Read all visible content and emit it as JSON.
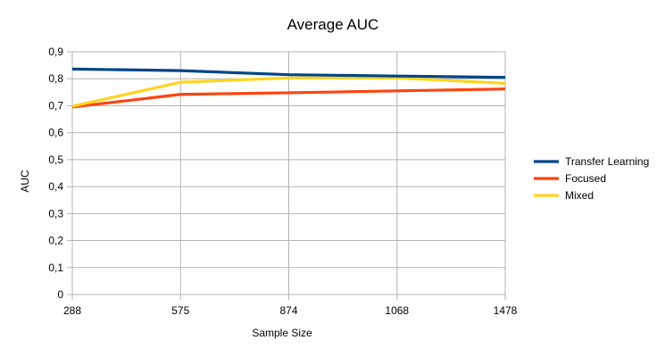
{
  "chart_data": {
    "type": "line",
    "title": "Average AUC",
    "xlabel": "Sample Size",
    "ylabel": "AUC",
    "categories": [
      "288",
      "575",
      "874",
      "1068",
      "1478"
    ],
    "ylim": [
      0,
      0.9
    ],
    "yticks": [
      "0",
      "0,1",
      "0,2",
      "0,3",
      "0,4",
      "0,5",
      "0,6",
      "0,7",
      "0,8",
      "0,9"
    ],
    "grid": true,
    "legend_position": "right",
    "series": [
      {
        "name": "Transfer Learning",
        "color": "#004586",
        "values": [
          0.836,
          0.83,
          0.815,
          0.81,
          0.805
        ]
      },
      {
        "name": "Focused",
        "color": "#ff420e",
        "values": [
          0.695,
          0.742,
          0.748,
          0.755,
          0.762
        ]
      },
      {
        "name": "Mixed",
        "color": "#ffd320",
        "values": [
          0.698,
          0.787,
          0.803,
          0.803,
          0.783
        ]
      }
    ]
  }
}
